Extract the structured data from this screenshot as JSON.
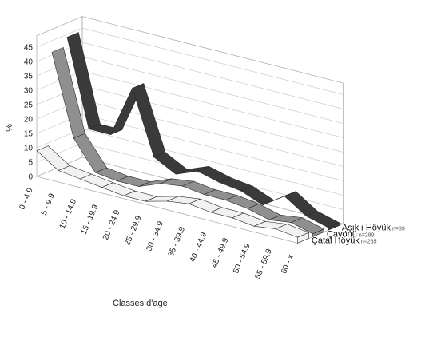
{
  "chart_data": {
    "type": "area",
    "title": "",
    "xlabel": "Classes d'age",
    "ylabel": "%",
    "ylim": [
      0,
      45
    ],
    "yticks": [
      0,
      5,
      10,
      15,
      20,
      25,
      30,
      35,
      40,
      45
    ],
    "grid": true,
    "categories": [
      "0 - 4.9",
      "5 - 9.9",
      "10 - 14.9",
      "15 - 19.9",
      "20 - 24.9",
      "25 - 29.9",
      "30 - 34.9",
      "35 - 39.9",
      "40 - 44.9",
      "45 - 49.9",
      "50 - 54.9",
      "55 - 59.9",
      "60 - x"
    ],
    "series": [
      {
        "name": "Çatal Höyük",
        "n": "n=285",
        "color": "#f1f1f1",
        "values": [
          9,
          4,
          3,
          2,
          1,
          1,
          3,
          4,
          3,
          3,
          2,
          3,
          2
        ]
      },
      {
        "name": "Çayönü",
        "n": "n=289",
        "color": "#8f8f8f",
        "values": [
          41,
          13,
          3,
          2,
          2,
          5,
          6,
          5,
          5,
          4,
          2,
          3,
          1
        ]
      },
      {
        "name": "Aşıklı Höyük",
        "n": "n=39",
        "color": "#3a3a3a",
        "values": [
          44,
          14,
          14,
          32,
          10,
          6,
          9,
          7,
          6,
          3,
          8,
          3,
          1
        ]
      }
    ]
  }
}
